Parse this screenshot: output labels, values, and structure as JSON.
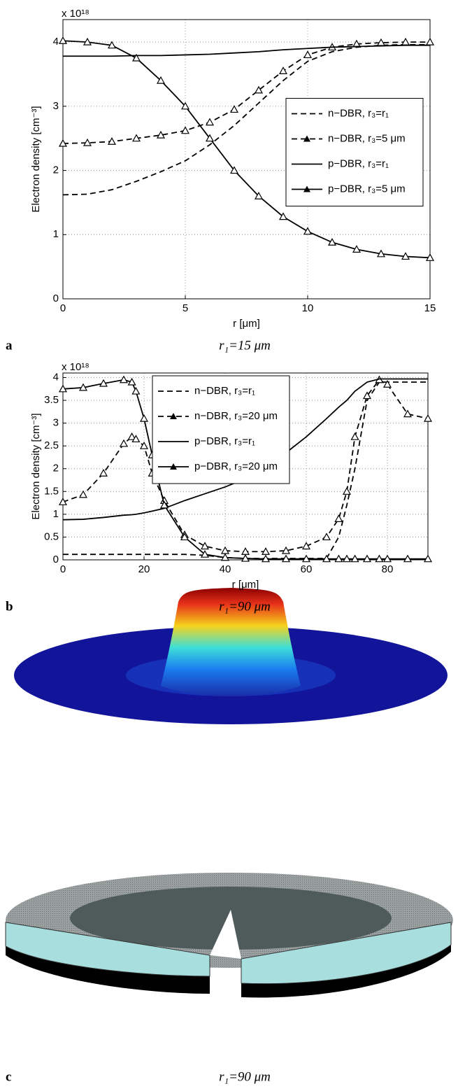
{
  "chart_data": [
    {
      "type": "line",
      "panel": "a",
      "caption": "r₁=15 μm",
      "exponent": "x 10¹⁸",
      "x_label": "r [μm]",
      "y_label": "Electron density [cm⁻³]",
      "xlim": [
        0,
        15
      ],
      "xticks": [
        0,
        5,
        10,
        15
      ],
      "ylim": [
        0,
        4.35
      ],
      "yticks": [
        0,
        1,
        2,
        3,
        4
      ],
      "grid": true,
      "legend": "center right",
      "x": [
        0,
        1,
        2,
        3,
        4,
        5,
        6,
        7,
        8,
        9,
        10,
        11,
        12,
        13,
        14,
        15
      ],
      "series": [
        {
          "name": "n−DBR, r₃=r₁",
          "color": "#000000",
          "dash": true,
          "marker": "none",
          "values": [
            1.62,
            1.63,
            1.7,
            1.83,
            1.98,
            2.15,
            2.4,
            2.7,
            3.05,
            3.4,
            3.7,
            3.85,
            3.92,
            3.95,
            3.96,
            3.96
          ]
        },
        {
          "name": "n−DBR, r₃=5 μm",
          "color": "#000000",
          "dash": true,
          "marker": "triangle",
          "values": [
            2.42,
            2.43,
            2.45,
            2.5,
            2.55,
            2.62,
            2.75,
            2.95,
            3.25,
            3.55,
            3.8,
            3.92,
            3.97,
            3.99,
            4.0,
            4.0
          ]
        },
        {
          "name": "p−DBR, r₃=r₁",
          "color": "#000000",
          "dash": false,
          "marker": "none",
          "values": [
            3.78,
            3.78,
            3.78,
            3.79,
            3.79,
            3.8,
            3.81,
            3.83,
            3.85,
            3.88,
            3.9,
            3.92,
            3.93,
            3.94,
            3.95,
            3.95
          ]
        },
        {
          "name": "p−DBR, r₃=5 μm",
          "color": "#000000",
          "dash": false,
          "marker": "triangle",
          "values": [
            4.02,
            4.0,
            3.95,
            3.75,
            3.4,
            3.0,
            2.5,
            2.0,
            1.6,
            1.28,
            1.05,
            0.88,
            0.77,
            0.7,
            0.66,
            0.64
          ]
        }
      ]
    },
    {
      "type": "line",
      "panel": "b",
      "caption": "r₁=90 μm",
      "exponent": "x 10¹⁸",
      "x_label": "r [μm]",
      "y_label": "Electron density [cm⁻³]",
      "xlim": [
        0,
        90
      ],
      "xticks": [
        0,
        20,
        40,
        60,
        80
      ],
      "ylim": [
        0,
        4.1
      ],
      "yticks": [
        0,
        0.5,
        1,
        1.5,
        2,
        2.5,
        3,
        3.5,
        4
      ],
      "grid": true,
      "legend": "upper center",
      "x": [
        0,
        5,
        10,
        15,
        17,
        18,
        20,
        22,
        25,
        30,
        35,
        40,
        45,
        50,
        55,
        60,
        65,
        68,
        70,
        72,
        75,
        78,
        80,
        85,
        90
      ],
      "series": [
        {
          "name": "n−DBR, r₃=r₁",
          "color": "#000000",
          "dash": true,
          "marker": "none",
          "values": [
            0.12,
            0.12,
            0.12,
            0.12,
            0.12,
            0.12,
            0.12,
            0.12,
            0.12,
            0.12,
            0.1,
            0.05,
            0.03,
            0.03,
            0.03,
            0.03,
            0.03,
            0.5,
            1.2,
            2.0,
            3.5,
            3.9,
            3.9,
            3.9,
            3.9
          ]
        },
        {
          "name": "n−DBR, r₃=20 μm",
          "color": "#000000",
          "dash": true,
          "marker": "triangle",
          "values": [
            1.27,
            1.43,
            1.9,
            2.55,
            2.7,
            2.65,
            2.5,
            1.9,
            1.3,
            0.55,
            0.3,
            0.2,
            0.18,
            0.18,
            0.2,
            0.3,
            0.5,
            0.9,
            1.5,
            2.7,
            3.6,
            3.95,
            3.85,
            3.2,
            3.1
          ]
        },
        {
          "name": "p−DBR, r₃=r₁",
          "color": "#000000",
          "dash": false,
          "marker": "none",
          "values": [
            0.88,
            0.89,
            0.93,
            0.98,
            0.99,
            1.0,
            1.03,
            1.07,
            1.13,
            1.3,
            1.45,
            1.6,
            1.78,
            2.05,
            2.35,
            2.7,
            3.1,
            3.35,
            3.5,
            3.7,
            3.9,
            3.97,
            3.97,
            3.97,
            3.97
          ]
        },
        {
          "name": "p−DBR, r₃=20 μm",
          "color": "#000000",
          "dash": false,
          "marker": "triangle",
          "values": [
            3.75,
            3.78,
            3.87,
            3.95,
            3.9,
            3.7,
            3.1,
            2.3,
            1.2,
            0.5,
            0.12,
            0.05,
            0.03,
            0.02,
            0.02,
            0.02,
            0.02,
            0.02,
            0.02,
            0.02,
            0.02,
            0.02,
            0.02,
            0.02,
            0.02
          ]
        }
      ]
    }
  ],
  "figure_c": {
    "panel": "c",
    "caption": "r₁=90 μm"
  }
}
